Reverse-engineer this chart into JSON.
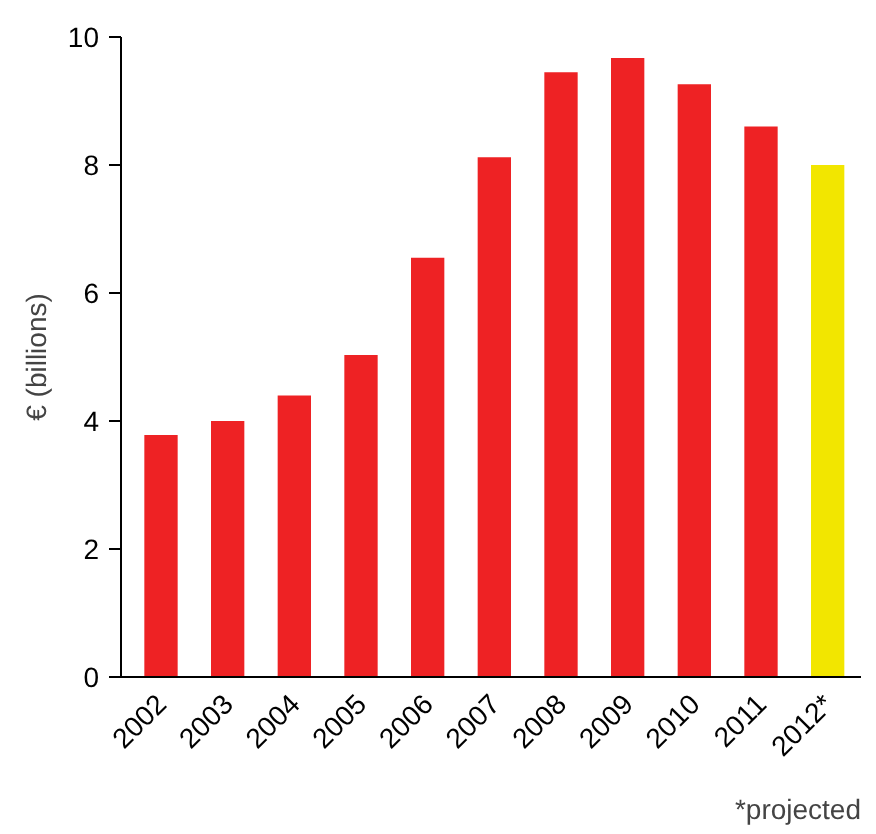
{
  "chart_data": {
    "type": "bar",
    "ylabel": "€ (billions)",
    "categories": [
      "2002",
      "2003",
      "2004",
      "2005",
      "2006",
      "2007",
      "2008",
      "2009",
      "2010",
      "2011",
      "2012*"
    ],
    "values": [
      3.78,
      4.0,
      4.4,
      5.03,
      6.55,
      8.12,
      9.45,
      9.67,
      9.26,
      8.6,
      8.0
    ],
    "colors": [
      "#ee2224",
      "#ee2224",
      "#ee2224",
      "#ee2224",
      "#ee2224",
      "#ee2224",
      "#ee2224",
      "#ee2224",
      "#ee2224",
      "#ee2224",
      "#f2e600"
    ],
    "ylim": [
      0,
      10
    ],
    "yticks": [
      0,
      2,
      4,
      6,
      8,
      10
    ],
    "grid": false,
    "annotations": [
      "*projected"
    ]
  }
}
